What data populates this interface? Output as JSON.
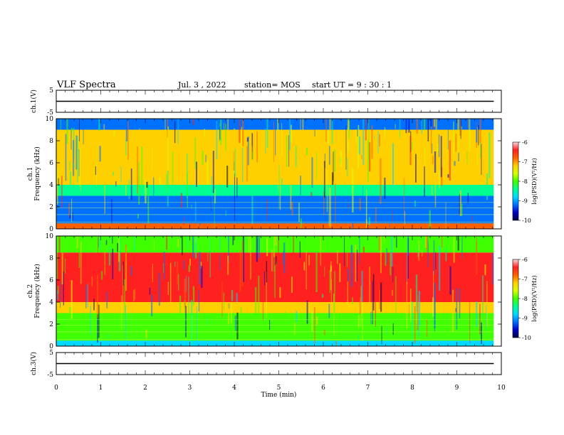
{
  "header": {
    "title": "VLF Spectra",
    "date": "Jul. 3 , 2022",
    "station": "station= MOS",
    "start": "start UT = 9 : 30 : 1"
  },
  "colors": {
    "colormap": [
      "#000040",
      "#0000c8",
      "#0070ff",
      "#00d8ff",
      "#00ff90",
      "#40ff00",
      "#d8ff00",
      "#ffd000",
      "#ff6000",
      "#ff2020",
      "#ffd8d8"
    ],
    "trace": "#000000"
  },
  "chart_data": [
    {
      "type": "line",
      "name": "ch1-waveform",
      "ylabel": "ch.1(V)",
      "ylim": [
        -5,
        5
      ],
      "yticks": [
        "5",
        "-5"
      ],
      "x": [
        0,
        9.83
      ],
      "values": [
        0,
        0
      ]
    },
    {
      "type": "heatmap",
      "name": "ch1-spectrogram",
      "ylabel": "ch.1\nFrequency (kHz)",
      "ylim": [
        0,
        10
      ],
      "yticks": [
        "0",
        "2",
        "4",
        "6",
        "8",
        "10"
      ],
      "xlim": [
        0,
        9.83
      ],
      "bands_khz": [
        {
          "range": [
            0,
            0.5
          ],
          "level": -6.6
        },
        {
          "range": [
            0.5,
            3
          ],
          "level": -9.3
        },
        {
          "range": [
            3,
            4
          ],
          "level": -8.2
        },
        {
          "range": [
            4,
            9
          ],
          "level": -6.8
        },
        {
          "range": [
            9,
            10
          ],
          "level": -9.2
        }
      ],
      "colorbar": {
        "label": "log(PSD)(V²/Hz)",
        "ticks": [
          "-6",
          "-7",
          "-8",
          "-9",
          "-10"
        ],
        "range": [
          -10,
          -6
        ]
      }
    },
    {
      "type": "heatmap",
      "name": "ch2-spectrogram",
      "ylabel": "ch.2\nFrequency (kHz)",
      "ylim": [
        0,
        10
      ],
      "yticks": [
        "0",
        "2",
        "4",
        "6",
        "8",
        "10"
      ],
      "xlim": [
        0,
        9.83
      ],
      "bands_khz": [
        {
          "range": [
            0,
            0.5
          ],
          "level": -8.5
        },
        {
          "range": [
            0.5,
            3
          ],
          "level": -7.8
        },
        {
          "range": [
            3,
            4
          ],
          "level": -6.8
        },
        {
          "range": [
            4,
            8.5
          ],
          "level": -6.1
        },
        {
          "range": [
            8.5,
            10
          ],
          "level": -7.6
        }
      ],
      "colorbar": {
        "label": "log(PSD)(V²/Hz)",
        "ticks": [
          "-6",
          "-7",
          "-8",
          "-9",
          "-10"
        ],
        "range": [
          -10,
          -6
        ]
      }
    },
    {
      "type": "line",
      "name": "ch3-waveform",
      "ylabel": "ch.3(V)",
      "ylim": [
        -5,
        5
      ],
      "yticks": [
        "5",
        "-5"
      ],
      "x": [
        0,
        9.83
      ],
      "values": [
        0,
        0
      ]
    }
  ],
  "xaxis": {
    "label": "Time (min)",
    "ticks": [
      "0",
      "1",
      "2",
      "3",
      "4",
      "5",
      "6",
      "7",
      "8",
      "9",
      "10"
    ],
    "xlim": [
      0,
      10
    ]
  }
}
